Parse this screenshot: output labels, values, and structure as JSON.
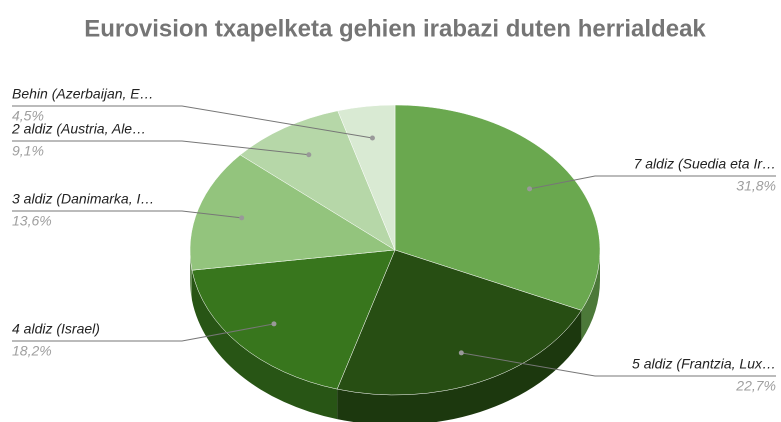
{
  "chart_data": {
    "type": "pie3d",
    "title": "Eurovision txapelketa gehien irabazi duten herrialdeak",
    "categories": [
      "7 aldiz (Suedia eta Ir…",
      "5 aldiz (Frantzia, Lux…",
      "4 aldiz (Israel)",
      "3 aldiz (Danimarka, I…",
      "2 aldiz (Austria, Ale…",
      "Behin (Azerbaijan, E…"
    ],
    "values": [
      31.8,
      22.7,
      18.2,
      13.6,
      9.1,
      4.5
    ],
    "value_labels": [
      "31,8%",
      "22,7%",
      "18,2%",
      "13,6%",
      "9,1%",
      "4,5%"
    ],
    "colors": [
      "#6aa84f",
      "#274e13",
      "#38761d",
      "#93c47d",
      "#b6d7a8",
      "#d9ead3"
    ]
  }
}
